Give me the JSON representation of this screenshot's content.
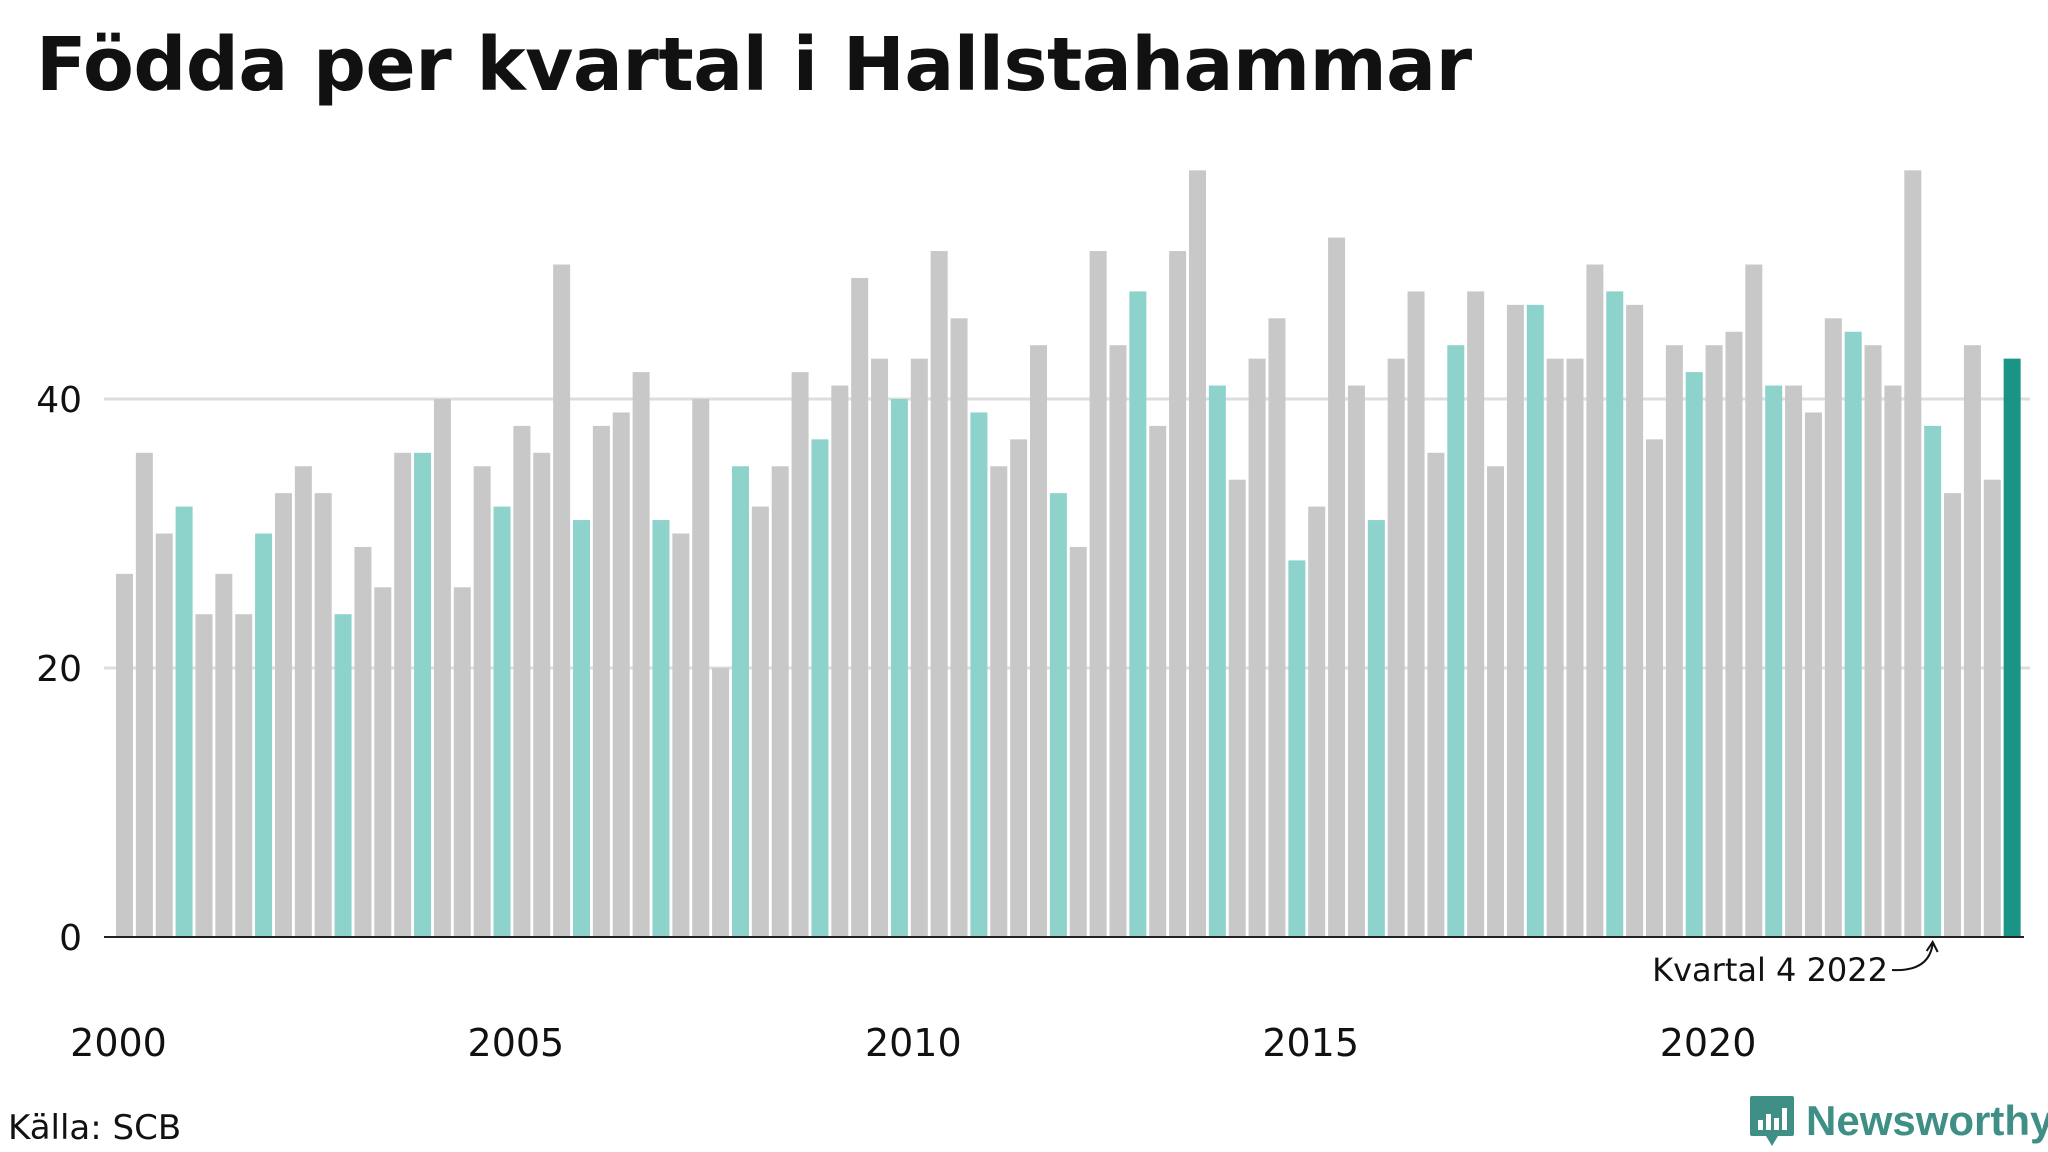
{
  "title": "Födda per kvartal i Hallstahammar",
  "source": "Källa: SCB",
  "logo_text": "Newsworthy",
  "logo_icon": "newsworthy-chart-icon",
  "colors": {
    "bar": "#c8c8c8",
    "bar_q4": "#8dd3cc",
    "bar_latest": "#1a9585",
    "grid": "#dddddd",
    "axis": "#222222",
    "logo": "#3f8f86"
  },
  "chart_data": {
    "type": "bar",
    "title": "Födda per kvartal i Hallstahammar",
    "xlabel": "",
    "ylabel": "",
    "x_tick_labels": [
      "2000",
      "2005",
      "2010",
      "2015",
      "2020"
    ],
    "y_ticks": [
      0,
      20,
      40
    ],
    "ylim": [
      0,
      58
    ],
    "grid": true,
    "annotation": {
      "label": "Kvartal 4 2022",
      "target_index": 91
    },
    "highlight": "fourth quarter of each year; latest quarter in dark green",
    "series": [
      {
        "values": [
          27,
          36,
          30,
          32,
          24,
          27,
          24,
          30,
          33,
          35,
          33,
          24,
          29,
          26,
          36,
          36,
          40,
          26,
          35,
          32,
          38,
          36,
          50,
          31,
          38,
          39,
          42,
          31,
          30,
          40,
          20,
          35,
          32,
          35,
          42,
          37,
          41,
          49,
          43,
          40,
          43,
          51,
          46,
          39,
          35,
          37,
          44,
          33,
          29,
          51,
          44,
          48,
          38,
          51,
          57,
          41,
          34,
          43,
          46,
          28,
          32,
          52,
          41,
          31,
          43,
          48,
          36,
          44,
          48,
          35,
          47,
          47,
          43,
          43,
          50,
          48,
          47,
          37,
          44,
          42,
          44,
          45,
          50,
          41,
          41,
          39,
          46,
          45,
          44,
          41,
          57,
          38,
          33,
          44,
          34,
          43
        ]
      }
    ]
  }
}
